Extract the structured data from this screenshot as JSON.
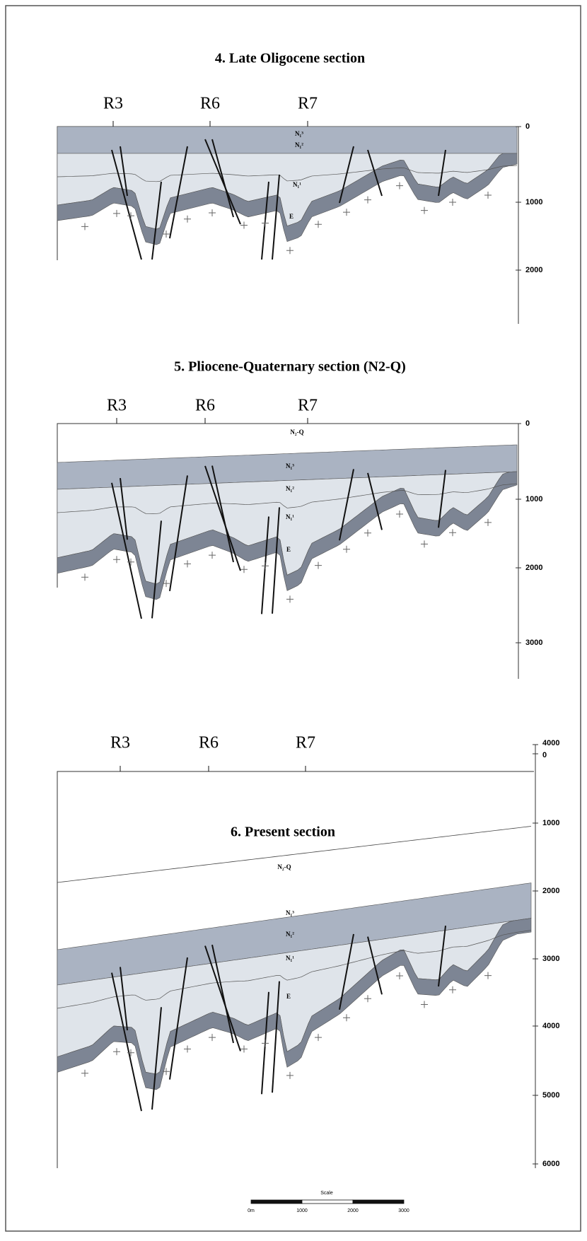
{
  "sections": [
    {
      "title": "4. Late Oligocene section",
      "wells": [
        "R3",
        "R6",
        "R7"
      ],
      "depth_ticks": [
        0,
        1000,
        2000
      ],
      "layer_labels": [
        "N₁³",
        "N₁²",
        "N₁¹",
        "E"
      ]
    },
    {
      "title": "5. Pliocene-Quaternary section (N2-Q)",
      "wells": [
        "R3",
        "R6",
        "R7"
      ],
      "depth_ticks": [
        0,
        1000,
        2000,
        3000
      ],
      "layer_labels": [
        "N₂-Q",
        "N₁³",
        "N₁²",
        "N₁¹",
        "E"
      ]
    },
    {
      "title": "6. Present section",
      "wells": [
        "R3",
        "R6",
        "R7"
      ],
      "depth_ticks": [
        4000,
        0,
        1000,
        2000,
        3000,
        4000,
        5000,
        6000
      ],
      "layer_labels": [
        "N₂-Q",
        "N₁³",
        "N₁²",
        "N₁¹",
        "E"
      ]
    }
  ],
  "scale": {
    "title": "Scale",
    "labels": [
      "0m",
      "1000",
      "2000",
      "3000"
    ]
  }
}
